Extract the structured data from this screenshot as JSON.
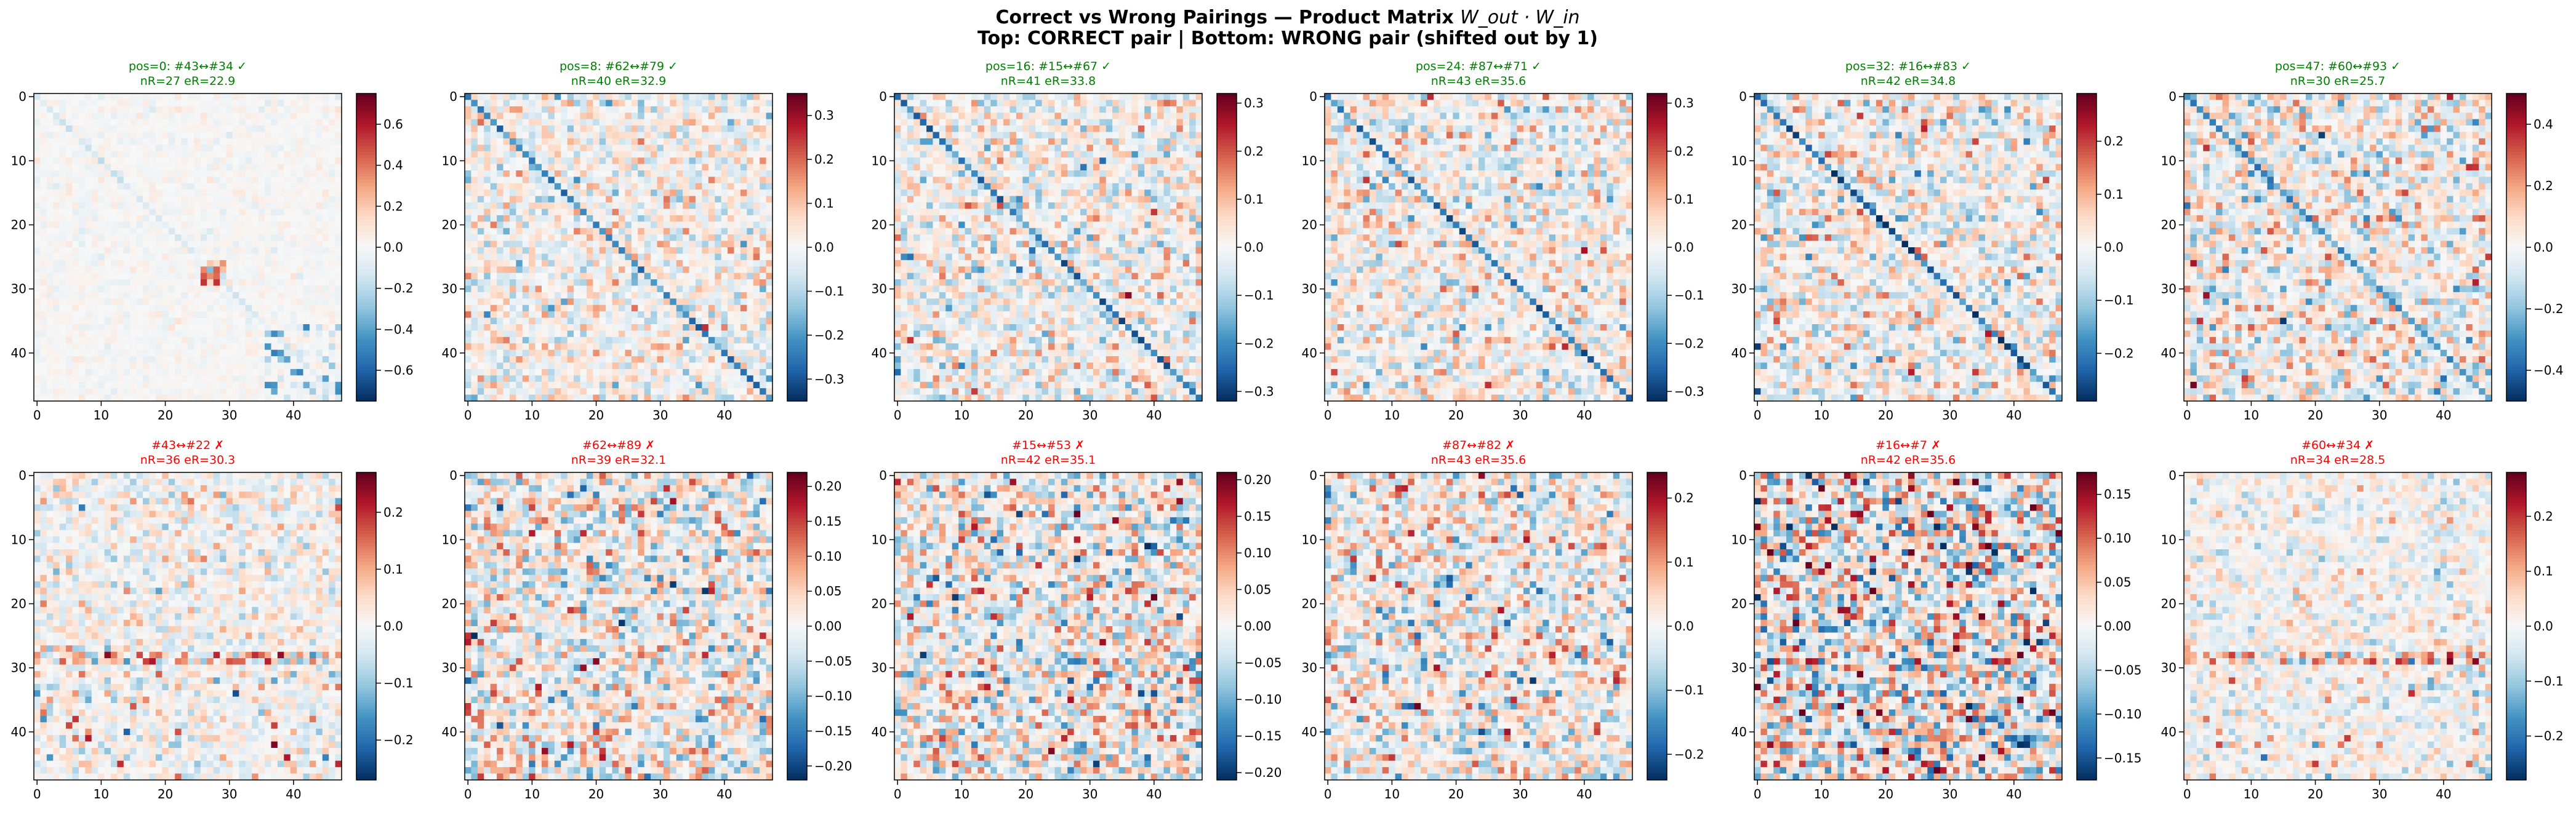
{
  "figure": {
    "title_line1_prefix": "Correct vs Wrong Pairings — Product Matrix ",
    "title_line1_math": "W_out · W_in",
    "title_line2": "Top: CORRECT pair | Bottom: WRONG pair (shifted out by 1)"
  },
  "colors": {
    "correct": "#008000",
    "wrong": "#ff0000",
    "text": "#000000",
    "frame": "#000000"
  },
  "chart_data": [
    {
      "type": "heatmap",
      "row": "top",
      "status": "correct",
      "title_l1": "pos=0: #43↔#34 ✓",
      "title_l2": "nR=27 eR=22.9",
      "size": 48,
      "vmax": 0.75,
      "pattern": "sparse-block",
      "diag": 0,
      "xticks": [
        "0",
        "10",
        "20",
        "30",
        "40"
      ],
      "yticks": [
        "0",
        "10",
        "20",
        "30",
        "40"
      ],
      "cbar_ticks": [
        "0.6",
        "0.4",
        "0.2",
        "0.0",
        "−0.2",
        "−0.4",
        "−0.6"
      ],
      "cbar_values": [
        0.6,
        0.4,
        0.2,
        0.0,
        -0.2,
        -0.4,
        -0.6
      ]
    },
    {
      "type": "heatmap",
      "row": "top",
      "status": "correct",
      "title_l1": "pos=8: #62↔#79 ✓",
      "title_l2": "nR=40 eR=32.9",
      "size": 48,
      "vmax": 0.35,
      "pattern": "diagonal",
      "diag": 1,
      "xticks": [
        "0",
        "10",
        "20",
        "30",
        "40"
      ],
      "yticks": [
        "0",
        "10",
        "20",
        "30",
        "40"
      ],
      "cbar_ticks": [
        "0.3",
        "0.2",
        "0.1",
        "0.0",
        "−0.1",
        "−0.2",
        "−0.3"
      ],
      "cbar_values": [
        0.3,
        0.2,
        0.1,
        0.0,
        -0.1,
        -0.2,
        -0.3
      ]
    },
    {
      "type": "heatmap",
      "row": "top",
      "status": "correct",
      "title_l1": "pos=16: #15↔#67 ✓",
      "title_l2": "nR=41 eR=33.8",
      "size": 48,
      "vmax": 0.32,
      "pattern": "diagonal",
      "diag": 1,
      "xticks": [
        "0",
        "10",
        "20",
        "30",
        "40"
      ],
      "yticks": [
        "0",
        "10",
        "20",
        "30",
        "40"
      ],
      "cbar_ticks": [
        "0.3",
        "0.2",
        "0.1",
        "0.0",
        "−0.1",
        "−0.2",
        "−0.3"
      ],
      "cbar_values": [
        0.3,
        0.2,
        0.1,
        0.0,
        -0.1,
        -0.2,
        -0.3
      ]
    },
    {
      "type": "heatmap",
      "row": "top",
      "status": "correct",
      "title_l1": "pos=24: #87↔#71 ✓",
      "title_l2": "nR=43 eR=35.6",
      "size": 48,
      "vmax": 0.32,
      "pattern": "diagonal",
      "diag": 1,
      "xticks": [
        "0",
        "10",
        "20",
        "30",
        "40"
      ],
      "yticks": [
        "0",
        "10",
        "20",
        "30",
        "40"
      ],
      "cbar_ticks": [
        "0.3",
        "0.2",
        "0.1",
        "0.0",
        "−0.1",
        "−0.2",
        "−0.3"
      ],
      "cbar_values": [
        0.3,
        0.2,
        0.1,
        0.0,
        -0.1,
        -0.2,
        -0.3
      ]
    },
    {
      "type": "heatmap",
      "row": "top",
      "status": "correct",
      "title_l1": "pos=32: #16↔#83 ✓",
      "title_l2": "nR=42 eR=34.8",
      "size": 48,
      "vmax": 0.29,
      "pattern": "diagonal",
      "diag": 1,
      "xticks": [
        "0",
        "10",
        "20",
        "30",
        "40"
      ],
      "yticks": [
        "0",
        "10",
        "20",
        "30",
        "40"
      ],
      "cbar_ticks": [
        "0.2",
        "0.1",
        "0.0",
        "−0.1",
        "−0.2"
      ],
      "cbar_values": [
        0.2,
        0.1,
        0.0,
        -0.1,
        -0.2
      ]
    },
    {
      "type": "heatmap",
      "row": "top",
      "status": "correct",
      "title_l1": "pos=47: #60↔#93 ✓",
      "title_l2": "nR=30 eR=25.7",
      "size": 48,
      "vmax": 0.5,
      "pattern": "diagonal-noisy",
      "diag": 1,
      "xticks": [
        "0",
        "10",
        "20",
        "30",
        "40"
      ],
      "yticks": [
        "0",
        "10",
        "20",
        "30",
        "40"
      ],
      "cbar_ticks": [
        "0.4",
        "0.2",
        "0.0",
        "−0.2",
        "−0.4"
      ],
      "cbar_values": [
        0.4,
        0.2,
        0.0,
        -0.2,
        -0.4
      ]
    },
    {
      "type": "heatmap",
      "row": "bottom",
      "status": "wrong",
      "title_l1": "#43↔#22 ✗",
      "title_l2": "nR=36 eR=30.3",
      "size": 48,
      "vmax": 0.27,
      "pattern": "noise-band",
      "diag": 0,
      "xticks": [
        "0",
        "10",
        "20",
        "30",
        "40"
      ],
      "yticks": [
        "0",
        "10",
        "20",
        "30",
        "40"
      ],
      "cbar_ticks": [
        "0.2",
        "0.1",
        "0.0",
        "−0.1",
        "−0.2"
      ],
      "cbar_values": [
        0.2,
        0.1,
        0.0,
        -0.1,
        -0.2
      ]
    },
    {
      "type": "heatmap",
      "row": "bottom",
      "status": "wrong",
      "title_l1": "#62↔#89 ✗",
      "title_l2": "nR=39 eR=32.1",
      "size": 48,
      "vmax": 0.22,
      "pattern": "noise",
      "diag": 0,
      "xticks": [
        "0",
        "10",
        "20",
        "30",
        "40"
      ],
      "yticks": [
        "0",
        "10",
        "20",
        "30",
        "40"
      ],
      "cbar_ticks": [
        "0.20",
        "0.15",
        "0.10",
        "0.05",
        "0.00",
        "−0.05",
        "−0.10",
        "−0.15",
        "−0.20"
      ],
      "cbar_values": [
        0.2,
        0.15,
        0.1,
        0.05,
        0.0,
        -0.05,
        -0.1,
        -0.15,
        -0.2
      ]
    },
    {
      "type": "heatmap",
      "row": "bottom",
      "status": "wrong",
      "title_l1": "#15↔#53 ✗",
      "title_l2": "nR=42 eR=35.1",
      "size": 48,
      "vmax": 0.21,
      "pattern": "noise",
      "diag": 0,
      "xticks": [
        "0",
        "10",
        "20",
        "30",
        "40"
      ],
      "yticks": [
        "0",
        "10",
        "20",
        "30",
        "40"
      ],
      "cbar_ticks": [
        "0.20",
        "0.15",
        "0.10",
        "0.05",
        "0.00",
        "−0.05",
        "−0.10",
        "−0.15",
        "−0.20"
      ],
      "cbar_values": [
        0.2,
        0.15,
        0.1,
        0.05,
        0.0,
        -0.05,
        -0.1,
        -0.15,
        -0.2
      ]
    },
    {
      "type": "heatmap",
      "row": "bottom",
      "status": "wrong",
      "title_l1": "#87↔#82 ✗",
      "title_l2": "nR=43 eR=35.6",
      "size": 48,
      "vmax": 0.24,
      "pattern": "noise",
      "diag": 0,
      "xticks": [
        "0",
        "10",
        "20",
        "30",
        "40"
      ],
      "yticks": [
        "0",
        "10",
        "20",
        "30",
        "40"
      ],
      "cbar_ticks": [
        "0.2",
        "0.1",
        "0.0",
        "−0.1",
        "−0.2"
      ],
      "cbar_values": [
        0.2,
        0.1,
        0.0,
        -0.1,
        -0.2
      ]
    },
    {
      "type": "heatmap",
      "row": "bottom",
      "status": "wrong",
      "title_l1": "#16↔#7 ✗",
      "title_l2": "nR=42 eR=35.6",
      "size": 48,
      "vmax": 0.175,
      "pattern": "noise-strong",
      "diag": 0,
      "xticks": [
        "0",
        "10",
        "20",
        "30",
        "40"
      ],
      "yticks": [
        "0",
        "10",
        "20",
        "30",
        "40"
      ],
      "cbar_ticks": [
        "0.15",
        "0.10",
        "0.05",
        "0.00",
        "−0.05",
        "−0.10",
        "−0.15"
      ],
      "cbar_values": [
        0.15,
        0.1,
        0.05,
        0.0,
        -0.05,
        -0.1,
        -0.15
      ]
    },
    {
      "type": "heatmap",
      "row": "bottom",
      "status": "wrong",
      "title_l1": "#60↔#34 ✗",
      "title_l2": "nR=34 eR=28.5",
      "size": 48,
      "vmax": 0.28,
      "pattern": "noise-band",
      "diag": 0,
      "xticks": [
        "0",
        "10",
        "20",
        "30",
        "40"
      ],
      "yticks": [
        "0",
        "10",
        "20",
        "30",
        "40"
      ],
      "cbar_ticks": [
        "0.2",
        "0.1",
        "0.0",
        "−0.1",
        "−0.2"
      ],
      "cbar_values": [
        0.2,
        0.1,
        0.0,
        -0.1,
        -0.2
      ]
    }
  ]
}
